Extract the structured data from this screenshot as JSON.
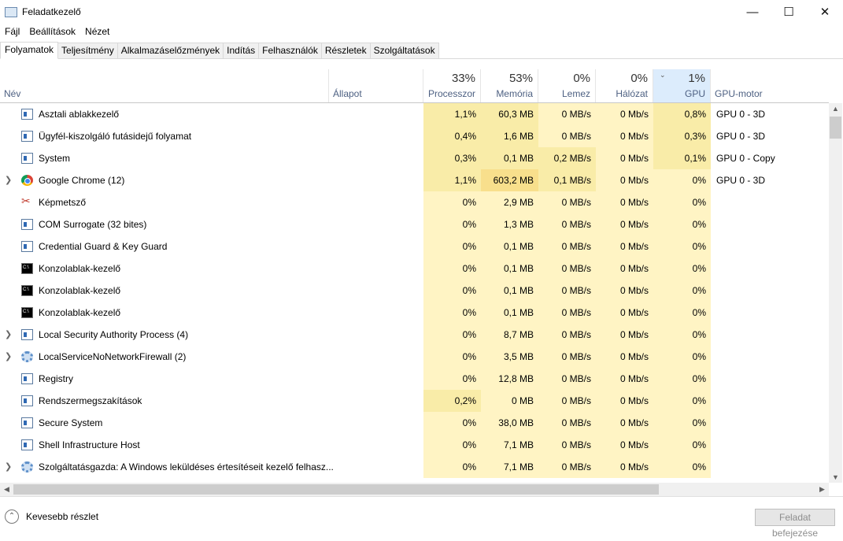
{
  "window": {
    "title": "Feladatkezelő",
    "minimize": "—",
    "maximize": "☐",
    "close": "✕"
  },
  "menu": [
    "Fájl",
    "Beállítások",
    "Nézet"
  ],
  "tabs": [
    {
      "label": "Folyamatok",
      "active": true
    },
    {
      "label": "Teljesítmény"
    },
    {
      "label": "Alkalmazáselőzmények"
    },
    {
      "label": "Indítás"
    },
    {
      "label": "Felhasználók"
    },
    {
      "label": "Részletek"
    },
    {
      "label": "Szolgáltatások"
    }
  ],
  "columns": {
    "name": {
      "label": "Név"
    },
    "status": {
      "label": "Állapot"
    },
    "cpu": {
      "pct": "33%",
      "label": "Processzor"
    },
    "mem": {
      "pct": "53%",
      "label": "Memória"
    },
    "disk": {
      "pct": "0%",
      "label": "Lemez"
    },
    "net": {
      "pct": "0%",
      "label": "Hálózat"
    },
    "gpu": {
      "pct": "1%",
      "label": "GPU",
      "sorted": true
    },
    "gpuengine": {
      "label": "GPU-motor"
    }
  },
  "rows": [
    {
      "name": "Asztali ablakkezelő",
      "icon": "window",
      "expand": false,
      "cpu": "1,1%",
      "mem": "60,3 MB",
      "disk": "0 MB/s",
      "net": "0 Mb/s",
      "gpu": "0,8%",
      "engine": "GPU 0 - 3D",
      "heat": [
        2,
        2,
        1,
        1,
        2
      ]
    },
    {
      "name": "Ügyfél-kiszolgáló futásidejű folyamat",
      "icon": "window",
      "expand": false,
      "cpu": "0,4%",
      "mem": "1,6 MB",
      "disk": "0 MB/s",
      "net": "0 Mb/s",
      "gpu": "0,3%",
      "engine": "GPU 0 - 3D",
      "heat": [
        2,
        2,
        1,
        1,
        2
      ]
    },
    {
      "name": "System",
      "icon": "window",
      "expand": false,
      "cpu": "0,3%",
      "mem": "0,1 MB",
      "disk": "0,2 MB/s",
      "net": "0 Mb/s",
      "gpu": "0,1%",
      "engine": "GPU 0 - Copy",
      "heat": [
        2,
        2,
        2,
        1,
        2
      ]
    },
    {
      "name": "Google Chrome (12)",
      "icon": "chrome",
      "expand": true,
      "cpu": "1,1%",
      "mem": "603,2 MB",
      "disk": "0,1 MB/s",
      "net": "0 Mb/s",
      "gpu": "0%",
      "engine": "GPU 0 - 3D",
      "heat": [
        2,
        3,
        2,
        1,
        1
      ]
    },
    {
      "name": "Képmetsző",
      "icon": "snip",
      "expand": false,
      "cpu": "0%",
      "mem": "2,9 MB",
      "disk": "0 MB/s",
      "net": "0 Mb/s",
      "gpu": "0%",
      "engine": "",
      "heat": [
        1,
        1,
        1,
        1,
        1
      ]
    },
    {
      "name": "COM Surrogate (32 bites)",
      "icon": "window",
      "expand": false,
      "cpu": "0%",
      "mem": "1,3 MB",
      "disk": "0 MB/s",
      "net": "0 Mb/s",
      "gpu": "0%",
      "engine": "",
      "heat": [
        1,
        1,
        1,
        1,
        1
      ]
    },
    {
      "name": "Credential Guard & Key Guard",
      "icon": "window",
      "expand": false,
      "cpu": "0%",
      "mem": "0,1 MB",
      "disk": "0 MB/s",
      "net": "0 Mb/s",
      "gpu": "0%",
      "engine": "",
      "heat": [
        1,
        1,
        1,
        1,
        1
      ]
    },
    {
      "name": "Konzolablak-kezelő",
      "icon": "console",
      "expand": false,
      "cpu": "0%",
      "mem": "0,1 MB",
      "disk": "0 MB/s",
      "net": "0 Mb/s",
      "gpu": "0%",
      "engine": "",
      "heat": [
        1,
        1,
        1,
        1,
        1
      ]
    },
    {
      "name": "Konzolablak-kezelő",
      "icon": "console",
      "expand": false,
      "cpu": "0%",
      "mem": "0,1 MB",
      "disk": "0 MB/s",
      "net": "0 Mb/s",
      "gpu": "0%",
      "engine": "",
      "heat": [
        1,
        1,
        1,
        1,
        1
      ]
    },
    {
      "name": "Konzolablak-kezelő",
      "icon": "console",
      "expand": false,
      "cpu": "0%",
      "mem": "0,1 MB",
      "disk": "0 MB/s",
      "net": "0 Mb/s",
      "gpu": "0%",
      "engine": "",
      "heat": [
        1,
        1,
        1,
        1,
        1
      ]
    },
    {
      "name": "Local Security Authority Process (4)",
      "icon": "window",
      "expand": true,
      "cpu": "0%",
      "mem": "8,7 MB",
      "disk": "0 MB/s",
      "net": "0 Mb/s",
      "gpu": "0%",
      "engine": "",
      "heat": [
        1,
        1,
        1,
        1,
        1
      ]
    },
    {
      "name": "LocalServiceNoNetworkFirewall (2)",
      "icon": "gear",
      "expand": true,
      "cpu": "0%",
      "mem": "3,5 MB",
      "disk": "0 MB/s",
      "net": "0 Mb/s",
      "gpu": "0%",
      "engine": "",
      "heat": [
        1,
        1,
        1,
        1,
        1
      ]
    },
    {
      "name": "Registry",
      "icon": "window",
      "expand": false,
      "cpu": "0%",
      "mem": "12,8 MB",
      "disk": "0 MB/s",
      "net": "0 Mb/s",
      "gpu": "0%",
      "engine": "",
      "heat": [
        1,
        1,
        1,
        1,
        1
      ]
    },
    {
      "name": "Rendszermegszakítások",
      "icon": "window",
      "expand": false,
      "cpu": "0,2%",
      "mem": "0 MB",
      "disk": "0 MB/s",
      "net": "0 Mb/s",
      "gpu": "0%",
      "engine": "",
      "heat": [
        2,
        1,
        1,
        1,
        1
      ]
    },
    {
      "name": "Secure System",
      "icon": "window",
      "expand": false,
      "cpu": "0%",
      "mem": "38,0 MB",
      "disk": "0 MB/s",
      "net": "0 Mb/s",
      "gpu": "0%",
      "engine": "",
      "heat": [
        1,
        1,
        1,
        1,
        1
      ]
    },
    {
      "name": "Shell Infrastructure Host",
      "icon": "window",
      "expand": false,
      "cpu": "0%",
      "mem": "7,1 MB",
      "disk": "0 MB/s",
      "net": "0 Mb/s",
      "gpu": "0%",
      "engine": "",
      "heat": [
        1,
        1,
        1,
        1,
        1
      ]
    },
    {
      "name": "Szolgáltatásgazda: A Windows leküldéses értesítéseit kezelő felhasz...",
      "icon": "gear",
      "expand": true,
      "cpu": "0%",
      "mem": "7,1 MB",
      "disk": "0 MB/s",
      "net": "0 Mb/s",
      "gpu": "0%",
      "engine": "",
      "heat": [
        1,
        1,
        1,
        1,
        1
      ]
    }
  ],
  "footer": {
    "less_details": "Kevesebb részlet",
    "end_task": "Feladat befejezése"
  }
}
